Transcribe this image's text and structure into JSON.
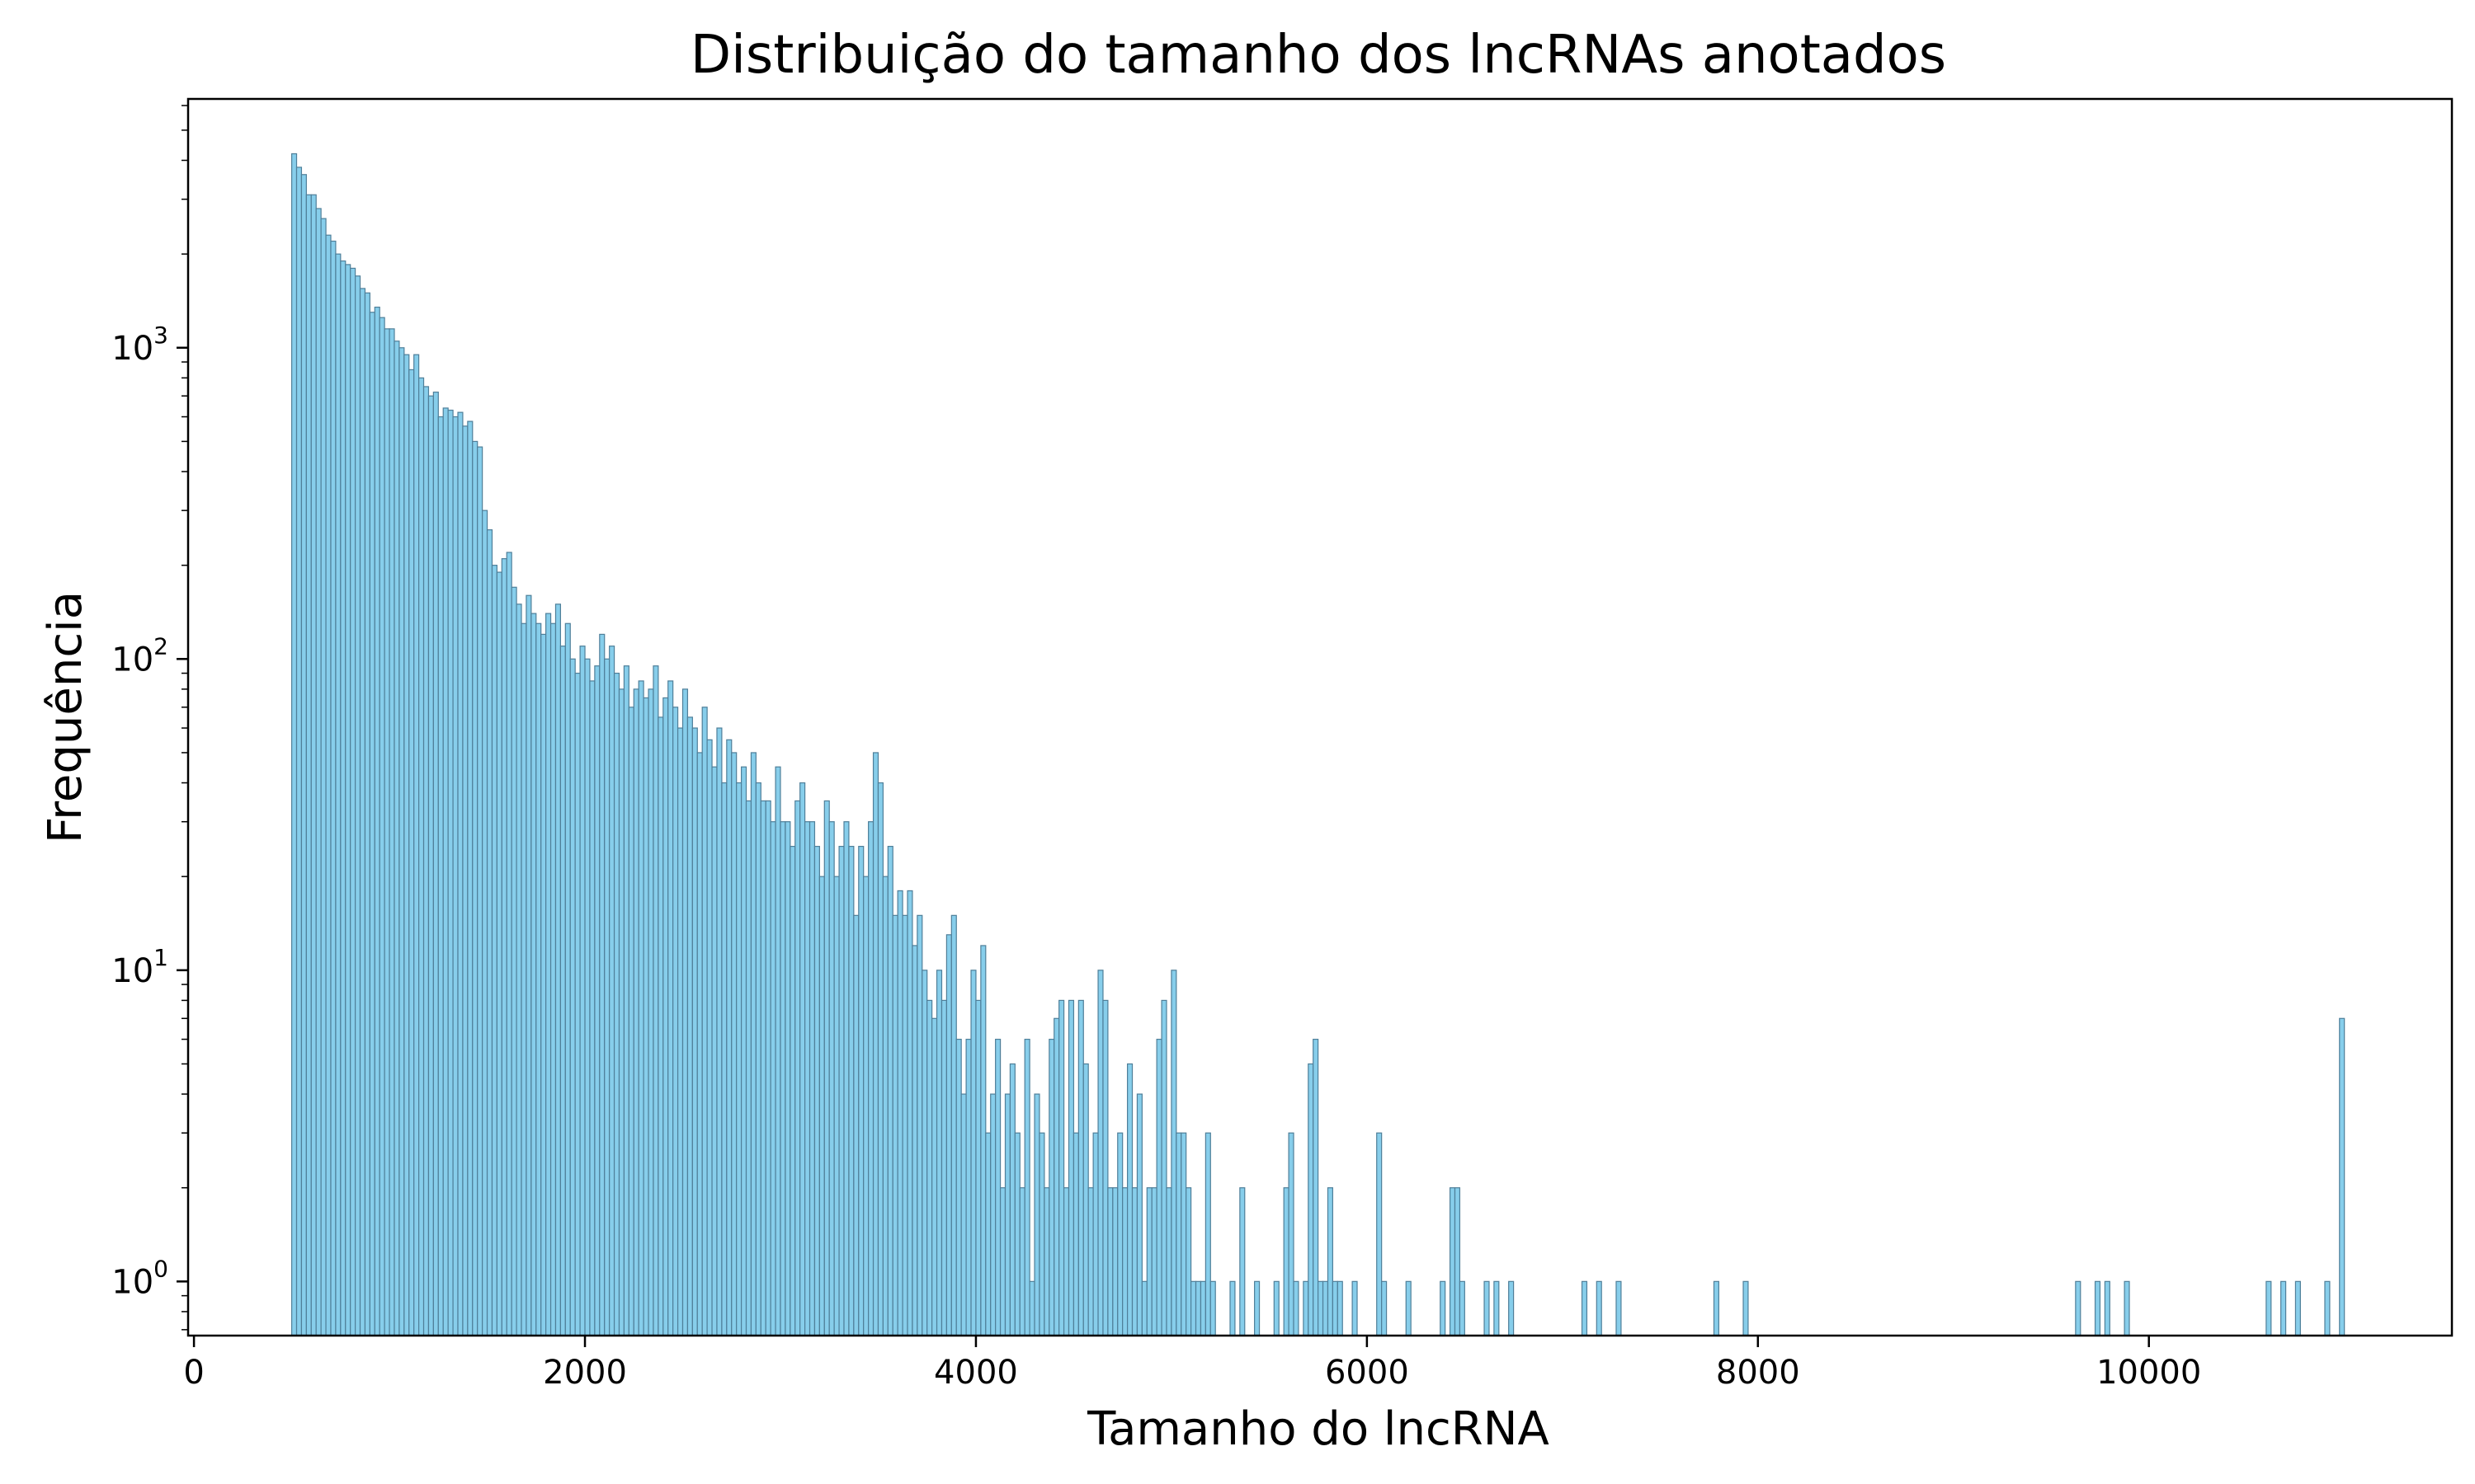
{
  "chart_data": {
    "type": "bar",
    "title": "Distribuição do tamanho dos lncRNAs anotados",
    "xlabel": "Tamanho do lncRNA",
    "ylabel": "Frequência",
    "xlim": [
      -30,
      11550
    ],
    "ylim": [
      0.67,
      6300
    ],
    "y_scale": "log",
    "grid": false,
    "bin_width": 25,
    "bar_color": "#87CEEB",
    "edge_color": "#4F7F99",
    "x_ticks": [
      {
        "value": 0,
        "label": "0"
      },
      {
        "value": 2000,
        "label": "2000"
      },
      {
        "value": 4000,
        "label": "4000"
      },
      {
        "value": 6000,
        "label": "6000"
      },
      {
        "value": 8000,
        "label": "8000"
      },
      {
        "value": 10000,
        "label": "10000"
      }
    ],
    "y_ticks": [
      {
        "value": 1,
        "base": "10",
        "exp": "0"
      },
      {
        "value": 10,
        "base": "10",
        "exp": "1"
      },
      {
        "value": 100,
        "base": "10",
        "exp": "2"
      },
      {
        "value": 1000,
        "base": "10",
        "exp": "3"
      }
    ],
    "x": [
      500,
      525,
      550,
      575,
      600,
      625,
      650,
      675,
      700,
      725,
      750,
      775,
      800,
      825,
      850,
      875,
      900,
      925,
      950,
      975,
      1000,
      1025,
      1050,
      1075,
      1100,
      1125,
      1150,
      1175,
      1200,
      1225,
      1250,
      1275,
      1300,
      1325,
      1350,
      1375,
      1400,
      1425,
      1450,
      1475,
      1500,
      1525,
      1550,
      1575,
      1600,
      1625,
      1650,
      1675,
      1700,
      1725,
      1750,
      1775,
      1800,
      1825,
      1850,
      1875,
      1900,
      1925,
      1950,
      1975,
      2000,
      2025,
      2050,
      2075,
      2100,
      2125,
      2150,
      2175,
      2200,
      2225,
      2250,
      2275,
      2300,
      2325,
      2350,
      2375,
      2400,
      2425,
      2450,
      2475,
      2500,
      2525,
      2550,
      2575,
      2600,
      2625,
      2650,
      2675,
      2700,
      2725,
      2750,
      2775,
      2800,
      2825,
      2850,
      2875,
      2900,
      2925,
      2950,
      2975,
      3000,
      3025,
      3050,
      3075,
      3100,
      3125,
      3150,
      3175,
      3200,
      3225,
      3250,
      3275,
      3300,
      3325,
      3350,
      3375,
      3400,
      3425,
      3450,
      3475,
      3500,
      3525,
      3550,
      3575,
      3600,
      3625,
      3650,
      3675,
      3700,
      3725,
      3750,
      3775,
      3800,
      3825,
      3850,
      3875,
      3900,
      3925,
      3950,
      3975,
      4000,
      4025,
      4050,
      4075,
      4100,
      4125,
      4150,
      4175,
      4200,
      4225,
      4250,
      4275,
      4300,
      4325,
      4350,
      4375,
      4400,
      4425,
      4450,
      4475,
      4500,
      4525,
      4550,
      4575,
      4600,
      4625,
      4650,
      4675,
      4700,
      4725,
      4750,
      4775,
      4800,
      4825,
      4850,
      4875,
      4900,
      4925,
      4950,
      4975,
      5000,
      5025,
      5050,
      5075,
      5100,
      5125,
      5150,
      5175,
      5200,
      5300,
      5350,
      5425,
      5525,
      5575,
      5600,
      5625,
      5675,
      5700,
      5725,
      5750,
      5775,
      5800,
      5825,
      5850,
      5925,
      6050,
      6075,
      6200,
      6375,
      6425,
      6450,
      6475,
      6600,
      6650,
      6725,
      7100,
      7175,
      7275,
      7775,
      7925,
      9625,
      9725,
      9775,
      9875,
      10600,
      10675,
      10750,
      10900,
      10975
    ],
    "values": [
      4200,
      3800,
      3600,
      3100,
      3100,
      2800,
      2600,
      2300,
      2200,
      2000,
      1900,
      1850,
      1800,
      1700,
      1550,
      1500,
      1300,
      1350,
      1250,
      1150,
      1150,
      1050,
      1000,
      950,
      850,
      950,
      800,
      750,
      700,
      720,
      600,
      640,
      630,
      600,
      620,
      560,
      580,
      500,
      480,
      300,
      260,
      200,
      190,
      210,
      220,
      170,
      150,
      130,
      160,
      140,
      130,
      120,
      140,
      130,
      150,
      110,
      130,
      100,
      90,
      110,
      100,
      85,
      95,
      120,
      100,
      110,
      90,
      80,
      95,
      70,
      80,
      85,
      75,
      80,
      95,
      65,
      75,
      85,
      70,
      60,
      80,
      65,
      60,
      50,
      70,
      55,
      45,
      60,
      40,
      55,
      50,
      40,
      45,
      35,
      50,
      40,
      35,
      35,
      30,
      45,
      30,
      30,
      25,
      35,
      40,
      30,
      30,
      25,
      20,
      35,
      30,
      20,
      25,
      30,
      25,
      15,
      25,
      20,
      30,
      50,
      40,
      20,
      25,
      15,
      18,
      15,
      18,
      12,
      15,
      10,
      8,
      7,
      10,
      8,
      13,
      15,
      6,
      4,
      6,
      10,
      8,
      12,
      3,
      4,
      6,
      2,
      4,
      5,
      3,
      2,
      6,
      1,
      4,
      3,
      2,
      6,
      7,
      8,
      2,
      8,
      3,
      8,
      5,
      2,
      3,
      10,
      8,
      2,
      2,
      3,
      2,
      5,
      2,
      4,
      1,
      2,
      2,
      6,
      8,
      2,
      10,
      3,
      3,
      2,
      1,
      1,
      1,
      3,
      1,
      1,
      2,
      1,
      1,
      2,
      3,
      1,
      1,
      5,
      6,
      1,
      1,
      2,
      1,
      1,
      1,
      3,
      1,
      1,
      1,
      2,
      2,
      1,
      1,
      1,
      1,
      1,
      1,
      1,
      1,
      1,
      1,
      1,
      1,
      1,
      1,
      1,
      1,
      1,
      7
    ]
  }
}
